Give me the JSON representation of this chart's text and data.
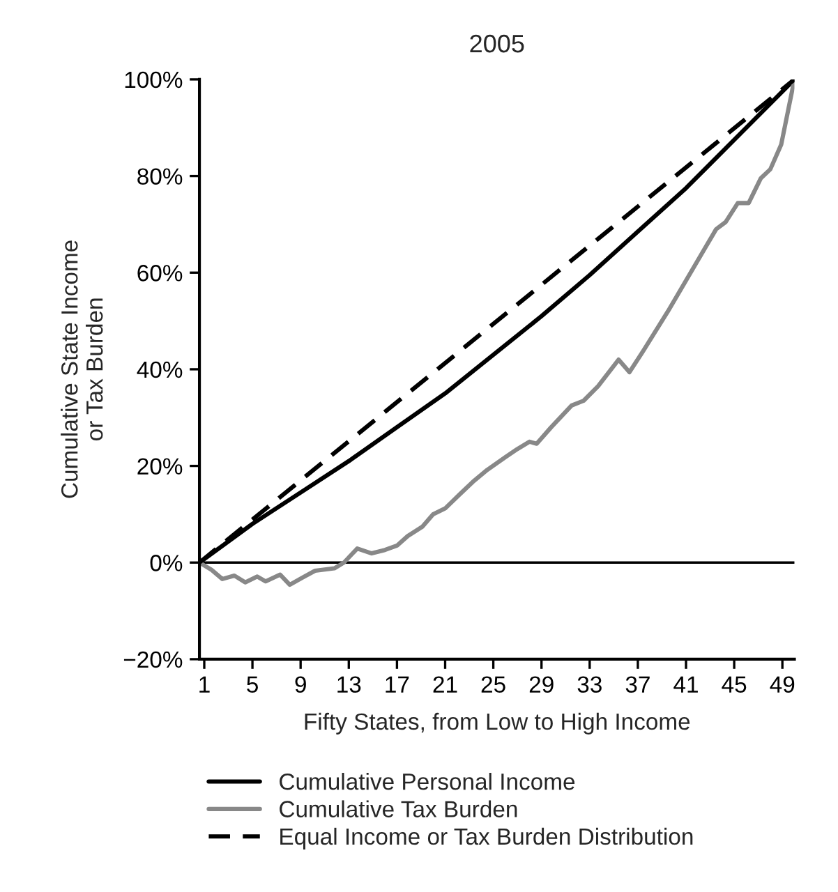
{
  "chart_data": {
    "type": "line",
    "title": "2005",
    "xlabel": "Fifty States, from Low to High Income",
    "ylabel": "Cumulative State Income\nor Tax Burden",
    "xlim": [
      0.6,
      50
    ],
    "xticks": [
      1,
      5,
      9,
      13,
      17,
      21,
      25,
      29,
      33,
      37,
      41,
      45,
      49
    ],
    "ylim": [
      -20,
      100
    ],
    "yticks": [
      {
        "value": -20,
        "label": "−20%"
      },
      {
        "value": 0,
        "label": "0%"
      },
      {
        "value": 20,
        "label": "20%"
      },
      {
        "value": 40,
        "label": "40%"
      },
      {
        "value": 60,
        "label": "60%"
      },
      {
        "value": 80,
        "label": "80%"
      },
      {
        "value": 100,
        "label": "100%"
      }
    ],
    "grid": false,
    "legend": "bottom",
    "ref_lines": [
      {
        "axis": "y",
        "value": 0,
        "color": "#000000"
      }
    ],
    "series": [
      {
        "name": "Cumulative Personal Income",
        "color": "#000000",
        "line_style": "solid",
        "x": [
          0.6,
          5,
          9,
          13,
          17,
          21,
          25,
          29,
          33,
          37,
          41,
          45,
          50
        ],
        "values": [
          0,
          8,
          14.5,
          21,
          28,
          35,
          43,
          51,
          59.5,
          68.5,
          77.5,
          87.5,
          100
        ]
      },
      {
        "name": "Cumulative Tax Burden",
        "color": "#888888",
        "line_style": "solid",
        "x": [
          0.6,
          1.6,
          2.5,
          3.5,
          4.4,
          5.4,
          6.1,
          7.3,
          8.1,
          9.1,
          10.2,
          11.8,
          12.6,
          13.7,
          14.9,
          16,
          17,
          17.9,
          19.1,
          20,
          21,
          22.2,
          23.3,
          24.5,
          26,
          27,
          28,
          28.6,
          29.8,
          31.5,
          32.5,
          33.7,
          35.4,
          36.3,
          37.5,
          39.5,
          41.5,
          43.5,
          44.3,
          45.3,
          46.2,
          47.2,
          48,
          48.9,
          50
        ],
        "values": [
          0,
          -1.5,
          -3.4,
          -2.7,
          -4.1,
          -2.9,
          -3.9,
          -2.5,
          -4.6,
          -3.2,
          -1.7,
          -1.2,
          0,
          2.9,
          1.9,
          2.6,
          3.5,
          5.5,
          7.4,
          10,
          11.2,
          14.1,
          16.7,
          19.2,
          21.8,
          23.5,
          25,
          24.6,
          28,
          32.5,
          33.5,
          36.5,
          42,
          39.4,
          44,
          52,
          60.5,
          69,
          70.5,
          74.4,
          74.4,
          79.5,
          81.4,
          86.5,
          100
        ]
      },
      {
        "name": "Equal Income or Tax Burden Distribution",
        "color": "#000000",
        "line_style": "dashed",
        "x": [
          0.6,
          50
        ],
        "values": [
          0,
          100
        ]
      }
    ]
  }
}
